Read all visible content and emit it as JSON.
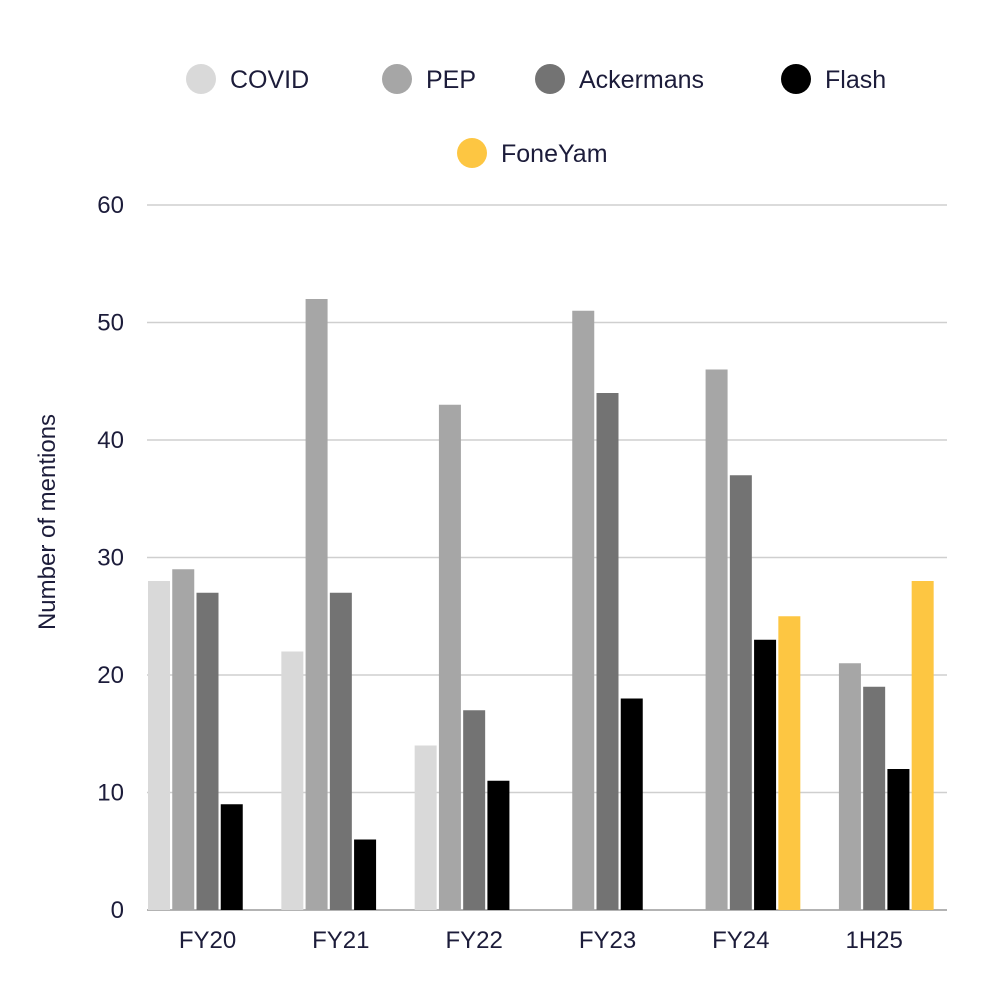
{
  "chart_data": {
    "type": "bar",
    "title": "",
    "xlabel": "",
    "ylabel": "Number of mentions",
    "categories": [
      "FY20",
      "FY21",
      "FY22",
      "FY23",
      "FY24",
      "1H25"
    ],
    "ylim": [
      0,
      60
    ],
    "yticks": [
      0,
      10,
      20,
      30,
      40,
      50,
      60
    ],
    "grid": true,
    "legend_position": "top",
    "series": [
      {
        "name": "COVID",
        "color": "#d9d9d9",
        "values": [
          28,
          22,
          14,
          null,
          null,
          null
        ]
      },
      {
        "name": "PEP",
        "color": "#a6a6a6",
        "values": [
          29,
          52,
          43,
          51,
          46,
          21
        ]
      },
      {
        "name": "Ackermans",
        "color": "#737373",
        "values": [
          27,
          27,
          17,
          44,
          37,
          19
        ]
      },
      {
        "name": "Flash",
        "color": "#000000",
        "values": [
          9,
          6,
          11,
          18,
          23,
          12
        ]
      },
      {
        "name": "FoneYam",
        "color": "#fdc642",
        "values": [
          null,
          null,
          null,
          null,
          25,
          28
        ]
      }
    ]
  }
}
